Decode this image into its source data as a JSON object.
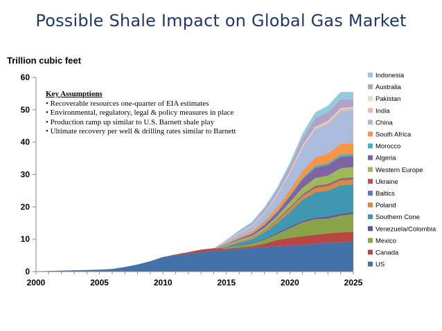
{
  "title": "Possible Shale Impact on Global Gas Market",
  "key_assumptions": {
    "heading": "Key Assumptions",
    "items": [
      "• Recoverable resources one-quarter of EIA estimates",
      "• Environmental, regulatory, legal & policy measures in place",
      "• Production ramp up similar to U.S. Barnett shale play",
      "• Ultimate recovery per well & drilling rates similar to Barnett"
    ]
  },
  "chart_data": {
    "type": "area",
    "stacked": true,
    "ylabel": "Trillion cubic feet",
    "xlabel": "",
    "xlim": [
      2000,
      2025
    ],
    "ylim": [
      0,
      60
    ],
    "xticks": [
      2000,
      2005,
      2010,
      2015,
      2020,
      2025
    ],
    "yticks": [
      0,
      10,
      20,
      30,
      40,
      50,
      60
    ],
    "grid": false,
    "legend": "right",
    "x": [
      2000,
      2001,
      2002,
      2003,
      2004,
      2005,
      2006,
      2007,
      2008,
      2009,
      2010,
      2011,
      2012,
      2013,
      2014,
      2015,
      2016,
      2017,
      2018,
      2019,
      2020,
      2021,
      2022,
      2023,
      2024,
      2025
    ],
    "series": [
      {
        "name": "US",
        "color": "#4472a8",
        "values": [
          0.1,
          0.2,
          0.3,
          0.4,
          0.5,
          0.6,
          0.8,
          1.4,
          2.2,
          3.2,
          4.5,
          5.0,
          5.5,
          6.0,
          6.4,
          6.7,
          7.0,
          7.3,
          7.6,
          7.8,
          8.0,
          8.3,
          8.6,
          8.9,
          9.1,
          9.3
        ]
      },
      {
        "name": "Canada",
        "color": "#b84643",
        "values": [
          0,
          0,
          0,
          0,
          0,
          0,
          0,
          0,
          0,
          0,
          0,
          0.3,
          0.5,
          0.8,
          0.8,
          0.4,
          0.4,
          0.5,
          1.0,
          2.0,
          2.4,
          2.6,
          2.8,
          2.9,
          3.0,
          3.0
        ]
      },
      {
        "name": "Mexico",
        "color": "#8aa34a",
        "values": [
          0,
          0,
          0,
          0,
          0,
          0,
          0,
          0,
          0,
          0,
          0,
          0,
          0,
          0,
          0,
          0.3,
          0.6,
          0.8,
          1.2,
          1.8,
          3.0,
          4.3,
          4.8,
          4.6,
          5.2,
          5.5
        ]
      },
      {
        "name": "Venezuela/Colombia",
        "color": "#6c5190",
        "values": [
          0,
          0,
          0,
          0,
          0,
          0,
          0,
          0,
          0,
          0,
          0,
          0,
          0,
          0,
          0,
          0.1,
          0.2,
          0.2,
          0.3,
          0.4,
          0.5,
          0.5,
          0.5,
          0.6,
          0.6,
          0.6
        ]
      },
      {
        "name": "Southern Cone",
        "color": "#3f98b0",
        "values": [
          0,
          0,
          0,
          0,
          0,
          0,
          0,
          0,
          0,
          0,
          0,
          0,
          0,
          0,
          0,
          0.3,
          0.8,
          1.2,
          2.0,
          3.0,
          4.6,
          6.5,
          7.8,
          8.0,
          8.8,
          8.5
        ]
      },
      {
        "name": "Poland",
        "color": "#d98b3a",
        "values": [
          0,
          0,
          0,
          0,
          0,
          0,
          0,
          0,
          0,
          0,
          0,
          0,
          0,
          0,
          0,
          0.1,
          0.2,
          0.3,
          0.4,
          0.6,
          0.8,
          1.0,
          1.2,
          1.3,
          1.4,
          1.4
        ]
      },
      {
        "name": "Baltics",
        "color": "#5b7fbd",
        "values": [
          0,
          0,
          0,
          0,
          0,
          0,
          0,
          0,
          0,
          0,
          0,
          0,
          0,
          0,
          0,
          0,
          0.05,
          0.1,
          0.1,
          0.2,
          0.2,
          0.3,
          0.3,
          0.3,
          0.3,
          0.3
        ]
      },
      {
        "name": "Ukraine",
        "color": "#c0504d",
        "values": [
          0,
          0,
          0,
          0,
          0,
          0,
          0,
          0,
          0,
          0,
          0,
          0,
          0,
          0,
          0,
          0.05,
          0.1,
          0.1,
          0.2,
          0.3,
          0.4,
          0.4,
          0.5,
          0.5,
          0.5,
          0.5
        ]
      },
      {
        "name": "Western Europe",
        "color": "#9bbb59",
        "values": [
          0,
          0,
          0,
          0,
          0,
          0,
          0,
          0,
          0,
          0,
          0,
          0,
          0,
          0,
          0,
          0.3,
          0.4,
          0.5,
          0.7,
          1.0,
          1.5,
          2.0,
          2.4,
          2.5,
          3.0,
          3.2
        ]
      },
      {
        "name": "Algeria",
        "color": "#8064a2",
        "values": [
          0,
          0,
          0,
          0,
          0,
          0,
          0,
          0,
          0,
          0,
          0,
          0,
          0,
          0,
          0,
          0.2,
          0.4,
          0.6,
          0.9,
          1.2,
          1.8,
          2.6,
          3.2,
          3.3,
          3.6,
          3.3
        ]
      },
      {
        "name": "Morocco",
        "color": "#4bacc6",
        "values": [
          0,
          0,
          0,
          0,
          0,
          0,
          0,
          0,
          0,
          0,
          0,
          0,
          0,
          0,
          0,
          0.05,
          0.1,
          0.1,
          0.2,
          0.3,
          0.4,
          0.5,
          0.6,
          0.6,
          0.7,
          0.7
        ]
      },
      {
        "name": "South Africa",
        "color": "#f79646",
        "values": [
          0,
          0,
          0,
          0,
          0,
          0,
          0,
          0,
          0,
          0,
          0,
          0,
          0,
          0,
          0,
          0.3,
          0.5,
          0.7,
          1.0,
          1.3,
          1.7,
          2.2,
          2.6,
          3.0,
          3.3,
          3.2
        ]
      },
      {
        "name": "China",
        "color": "#a9bcdc",
        "values": [
          0,
          0,
          0,
          0,
          0,
          0,
          0,
          0,
          0,
          0,
          0,
          0,
          0,
          0,
          0,
          0.5,
          1.0,
          1.6,
          2.4,
          3.5,
          5.0,
          7.0,
          8.5,
          9.0,
          10.0,
          10.3
        ]
      },
      {
        "name": "India",
        "color": "#e6b9b8",
        "values": [
          0,
          0,
          0,
          0,
          0,
          0,
          0,
          0,
          0,
          0,
          0,
          0,
          0,
          0,
          0,
          0.1,
          0.2,
          0.2,
          0.3,
          0.4,
          0.5,
          0.6,
          0.6,
          0.7,
          0.7,
          0.7
        ]
      },
      {
        "name": "Pakistan",
        "color": "#d7e4bd",
        "values": [
          0,
          0,
          0,
          0,
          0,
          0,
          0,
          0,
          0,
          0,
          0,
          0,
          0,
          0,
          0,
          0.05,
          0.1,
          0.1,
          0.1,
          0.2,
          0.2,
          0.3,
          0.3,
          0.3,
          0.3,
          0.3
        ]
      },
      {
        "name": "Australia",
        "color": "#b3a2c7",
        "values": [
          0,
          0,
          0,
          0,
          0,
          0,
          0,
          0,
          0,
          0,
          0,
          0,
          0,
          0,
          0,
          0.2,
          0.4,
          0.6,
          0.9,
          1.2,
          1.6,
          2.1,
          2.7,
          2.8,
          2.7,
          2.4
        ]
      },
      {
        "name": "Indonesia",
        "color": "#93cddd",
        "values": [
          0,
          0,
          0,
          0,
          0,
          0,
          0,
          0,
          0,
          0,
          0,
          0,
          0,
          0,
          0,
          0.1,
          0.3,
          0.4,
          0.6,
          0.8,
          1.0,
          1.5,
          1.8,
          2.0,
          2.3,
          2.3
        ]
      }
    ]
  }
}
